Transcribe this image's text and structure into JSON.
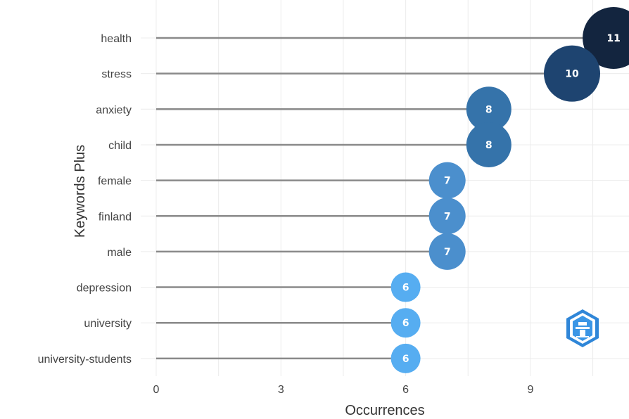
{
  "chart_data": {
    "type": "scatter",
    "xlabel": "Occurrences",
    "ylabel": "Keywords Plus",
    "xlim": [
      0,
      11
    ],
    "xticks": [
      0,
      3,
      6,
      9
    ],
    "grid": true,
    "categories": [
      "health",
      "stress",
      "anxiety",
      "child",
      "female",
      "finland",
      "male",
      "depression",
      "university",
      "university-students"
    ],
    "values": [
      11,
      10,
      8,
      8,
      7,
      7,
      7,
      6,
      6,
      6
    ],
    "colors": {
      "11": "#13253f",
      "10": "#1e4470",
      "8": "#3573aa",
      "7": "#4b8fcd",
      "6": "#56adf1",
      "stem": "#8a8a8a",
      "grid": "#ececec"
    }
  },
  "logo": {
    "icon": "shield-hexagon-logo-icon"
  }
}
